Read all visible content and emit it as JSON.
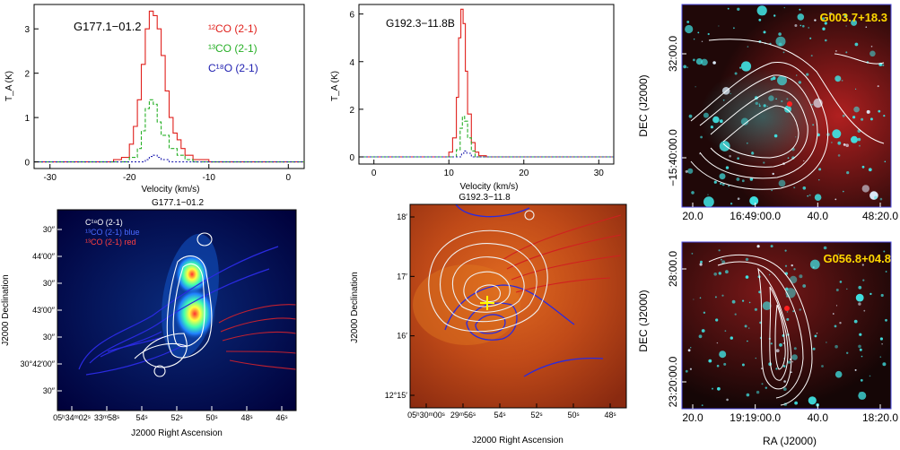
{
  "chart_data": [
    {
      "id": "spec1",
      "type": "line",
      "title": "G177.1−01.2",
      "xlabel": "Velocity (km/s)",
      "ylabel": "T_A (K)",
      "xlim": [
        -32,
        2
      ],
      "ylim": [
        -0.15,
        3.55
      ],
      "xticks": [
        -30,
        -20,
        -10,
        0
      ],
      "yticks": [
        0,
        1,
        2,
        3
      ],
      "series": [
        {
          "name": "12CO (2-1)",
          "color": "#e0201c",
          "x": [
            -32,
            -24,
            -22,
            -21,
            -20,
            -19.5,
            -19,
            -18.5,
            -18,
            -17.5,
            -17,
            -16.5,
            -16,
            -15.5,
            -15,
            -14.5,
            -14,
            -13.5,
            -13,
            -12,
            -10,
            -6,
            2
          ],
          "y": [
            0,
            0,
            0.05,
            0.1,
            0.4,
            0.8,
            1.4,
            2.2,
            3.0,
            3.4,
            3.3,
            3.0,
            2.4,
            1.6,
            1.0,
            0.65,
            0.5,
            0.3,
            0.15,
            0.05,
            0,
            0,
            0
          ]
        },
        {
          "name": "13CO (2-1)",
          "color": "#28b028",
          "x": [
            -32,
            -21,
            -20,
            -19,
            -18.5,
            -18,
            -17.5,
            -17,
            -16.5,
            -16,
            -15,
            -14,
            -13,
            -12,
            2
          ],
          "y": [
            0,
            0,
            0.1,
            0.3,
            0.7,
            1.2,
            1.4,
            1.3,
            0.9,
            0.6,
            0.3,
            0.15,
            0.05,
            0,
            0
          ]
        },
        {
          "name": "C18O (2-1)",
          "color": "#2020b0",
          "x": [
            -32,
            -19,
            -18,
            -17.5,
            -17,
            -16.5,
            -16,
            -15,
            2
          ],
          "y": [
            0,
            0,
            0.05,
            0.12,
            0.15,
            0.1,
            0.05,
            0,
            0
          ]
        }
      ]
    },
    {
      "id": "spec2",
      "type": "line",
      "title": "G192.3−11.8B",
      "xlabel": "Velocity (km/s)",
      "ylabel": "T_A (K)",
      "xlim": [
        -2,
        32
      ],
      "ylim": [
        -0.3,
        6.4
      ],
      "xticks": [
        0,
        10,
        20,
        30
      ],
      "yticks": [
        0,
        2,
        4,
        6
      ],
      "series": [
        {
          "name": "12CO (2-1)",
          "color": "#e0201c",
          "x": [
            -2,
            9.5,
            10,
            10.5,
            11,
            11.3,
            11.6,
            11.9,
            12.2,
            12.5,
            13,
            13.5,
            14,
            15,
            32
          ],
          "y": [
            0,
            0,
            0.2,
            0.8,
            2.5,
            5.0,
            6.2,
            5.6,
            3.6,
            1.8,
            0.6,
            0.2,
            0.05,
            0,
            0
          ]
        },
        {
          "name": "13CO (2-1)",
          "color": "#28b028",
          "x": [
            -2,
            10.5,
            11,
            11.5,
            11.8,
            12.1,
            12.5,
            13,
            13.5,
            32
          ],
          "y": [
            0,
            0,
            0.3,
            1.2,
            1.7,
            1.5,
            0.8,
            0.25,
            0,
            0
          ]
        },
        {
          "name": "C18O (2-1)",
          "color": "#2020b0",
          "x": [
            -2,
            11,
            11.7,
            12,
            12.4,
            13,
            32
          ],
          "y": [
            0,
            0,
            0.15,
            0.25,
            0.15,
            0,
            0
          ]
        }
      ]
    }
  ],
  "legend": {
    "co12": "¹²CO (2-1)",
    "co13": "¹³CO (2-1)",
    "c18o": "C¹⁸O (2-1)"
  },
  "map1": {
    "title": "G177.1−01.2",
    "legend_white": "C¹⁸O (2-1)",
    "legend_blue": "¹³CO (2-1) blue",
    "legend_red": "¹³CO (2-1) red",
    "xlabel": "J2000 Right Ascension",
    "ylabel": "J2000 Declination",
    "xticks": [
      "05ʰ34ᵐ02ˢ",
      "33ᵐ58ˢ",
      "54ˢ",
      "52ˢ",
      "50ˢ",
      "48ˢ",
      "46ˢ"
    ],
    "yticks": [
      "30″",
      "44′00″",
      "30″",
      "43′00″",
      "30″",
      "30°42′00″",
      "30″"
    ]
  },
  "map2": {
    "title": "G192.3−11.8",
    "xlabel": "J2000 Right Ascension",
    "ylabel": "J2000 Declination",
    "xticks": [
      "05ʰ30ᵐ00ˢ",
      "29ᵐ56ˢ",
      "54ˢ",
      "52ˢ",
      "50ˢ",
      "48ˢ"
    ],
    "yticks": [
      "18′",
      "17′",
      "16′",
      "12°15′"
    ]
  },
  "map3": {
    "label": "G003.7+18.3",
    "ylabel": "DEC (J2000)",
    "xticks": [
      "20.0",
      "16:49:00.0",
      "40.0",
      "48:20.0"
    ],
    "yticks": [
      "32:00.0",
      "−15:40:00.0"
    ]
  },
  "map4": {
    "label": "G056.8+04.8",
    "xlabel": "RA (J2000)",
    "ylabel": "DEC (J2000)",
    "xticks": [
      "20.0",
      "19:19:00.0",
      "40.0",
      "18:20.0"
    ],
    "yticks": [
      "28:00.0",
      "23:20:00.0"
    ]
  },
  "colors": {
    "co12": "#e0201c",
    "co13": "#28b028",
    "c18o": "#2020b0"
  }
}
